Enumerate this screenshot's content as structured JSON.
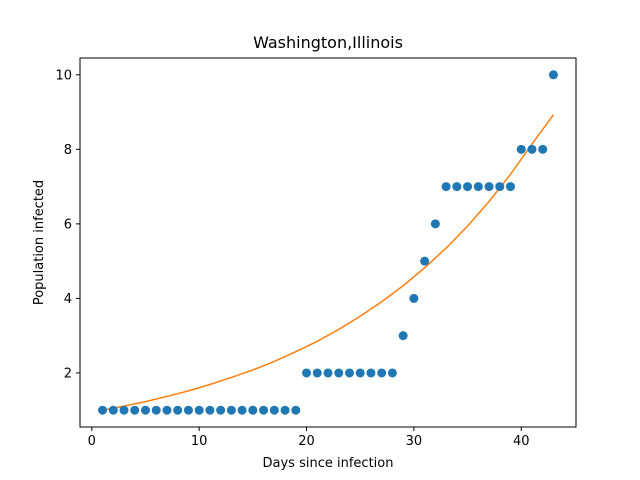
{
  "chart_data": {
    "type": "scatter",
    "title": "Washington,Illinois",
    "xlabel": "Days since infection",
    "ylabel": "Population infected",
    "xlim": [
      -1.1,
      45.1
    ],
    "ylim": [
      0.55,
      10.45
    ],
    "xticks": [
      0,
      10,
      20,
      30,
      40
    ],
    "yticks": [
      2,
      4,
      6,
      8,
      10
    ],
    "grid": false,
    "colors": {
      "points": "#1f77b4",
      "fit": "#ff7f0e"
    },
    "series": [
      {
        "kind": "scatter",
        "x": [
          1,
          2,
          3,
          4,
          5,
          6,
          7,
          8,
          9,
          10,
          11,
          12,
          13,
          14,
          15,
          16,
          17,
          18,
          19,
          20,
          21,
          22,
          23,
          24,
          25,
          26,
          27,
          28,
          29,
          30,
          31,
          32,
          33,
          34,
          35,
          36,
          37,
          38,
          39,
          40,
          41,
          42,
          43
        ],
        "y": [
          1,
          1,
          1,
          1,
          1,
          1,
          1,
          1,
          1,
          1,
          1,
          1,
          1,
          1,
          1,
          1,
          1,
          1,
          1,
          2,
          2,
          2,
          2,
          2,
          2,
          2,
          2,
          2,
          3,
          4,
          5,
          6,
          7,
          7,
          7,
          7,
          7,
          7,
          7,
          8,
          8,
          8,
          10
        ]
      },
      {
        "kind": "line",
        "x": [
          1,
          3,
          5,
          7,
          9,
          11,
          13,
          15,
          17,
          19,
          21,
          23,
          25,
          27,
          29,
          31,
          33,
          35,
          37,
          39,
          41,
          43
        ],
        "y": [
          1.0,
          1.11,
          1.23,
          1.37,
          1.52,
          1.69,
          1.88,
          2.08,
          2.31,
          2.57,
          2.85,
          3.17,
          3.52,
          3.91,
          4.34,
          4.82,
          5.35,
          5.94,
          6.6,
          7.33,
          8.14,
          8.93
        ]
      }
    ]
  }
}
